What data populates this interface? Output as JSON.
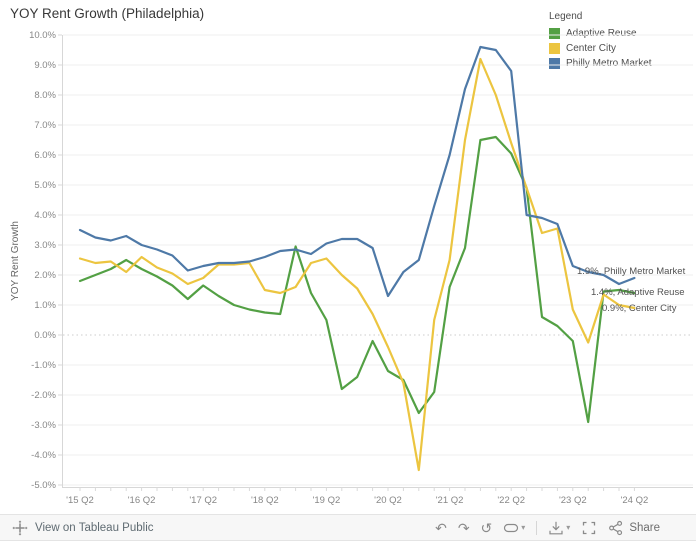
{
  "title": "YOY Rent Growth (Philadelphia)",
  "legend": {
    "title": "Legend",
    "items": [
      {
        "label": "Adaptive Reuse",
        "color": "#53a044"
      },
      {
        "label": "Center City",
        "color": "#ecc540"
      },
      {
        "label": "Philly Metro Market",
        "color": "#4e79a7"
      }
    ]
  },
  "chart_data": {
    "type": "line",
    "title": "YOY Rent Growth (Philadelphia)",
    "xlabel": "",
    "ylabel": "YOY Rent Growth",
    "ylim": [
      -5,
      10
    ],
    "ytick_step": 1,
    "ytick_format": "one-decimal-percent",
    "grid": true,
    "legend_position": "top-right",
    "x_labeled_every": 4,
    "categories": [
      "'15 Q2",
      "'15 Q3",
      "'15 Q4",
      "'16 Q1",
      "'16 Q2",
      "'16 Q3",
      "'16 Q4",
      "'17 Q1",
      "'17 Q2",
      "'17 Q3",
      "'17 Q4",
      "'18 Q1",
      "'18 Q2",
      "'18 Q3",
      "'18 Q4",
      "'19 Q1",
      "'19 Q2",
      "'19 Q3",
      "'19 Q4",
      "'20 Q1",
      "'20 Q2",
      "'20 Q3",
      "'20 Q4",
      "'21 Q1",
      "'21 Q2",
      "'21 Q3",
      "'21 Q4",
      "'22 Q1",
      "'22 Q2",
      "'22 Q3",
      "'22 Q4",
      "'23 Q1",
      "'23 Q2",
      "'23 Q3",
      "'23 Q4",
      "'24 Q1",
      "'24 Q2"
    ],
    "series": [
      {
        "name": "Adaptive Reuse",
        "color": "#53a044",
        "values": [
          1.8,
          2.0,
          2.2,
          2.5,
          2.2,
          1.95,
          1.65,
          1.2,
          1.65,
          1.3,
          1.0,
          0.85,
          0.75,
          0.7,
          2.95,
          1.4,
          0.5,
          -1.8,
          -1.4,
          -0.2,
          -1.2,
          -1.5,
          -2.6,
          -1.9,
          1.6,
          2.9,
          6.5,
          6.6,
          6.05,
          4.9,
          0.6,
          0.3,
          -0.2,
          -2.9,
          1.45,
          1.5,
          1.4
        ]
      },
      {
        "name": "Center City",
        "color": "#ecc540",
        "values": [
          2.55,
          2.4,
          2.45,
          2.1,
          2.6,
          2.25,
          2.05,
          1.7,
          1.9,
          2.35,
          2.35,
          2.4,
          1.5,
          1.4,
          1.6,
          2.4,
          2.55,
          2.0,
          1.55,
          0.7,
          -0.4,
          -1.6,
          -4.5,
          0.5,
          2.5,
          6.5,
          9.2,
          8.0,
          6.4,
          4.9,
          3.4,
          3.55,
          0.85,
          -0.25,
          1.35,
          1.0,
          0.9
        ]
      },
      {
        "name": "Philly Metro Market",
        "color": "#4e79a7",
        "values": [
          3.5,
          3.25,
          3.15,
          3.3,
          3.0,
          2.85,
          2.65,
          2.15,
          2.3,
          2.4,
          2.4,
          2.45,
          2.6,
          2.8,
          2.85,
          2.7,
          3.05,
          3.2,
          3.2,
          2.9,
          1.3,
          2.1,
          2.5,
          4.3,
          6.0,
          8.2,
          9.6,
          9.5,
          8.8,
          4.0,
          3.9,
          3.7,
          2.3,
          2.1,
          2.0,
          1.7,
          1.9
        ]
      }
    ],
    "annotations": [
      {
        "text": "1.9%, Philly Metro Market"
      },
      {
        "text": "1.4%, Adaptive Reuse"
      },
      {
        "text": "0.9%, Center City"
      }
    ]
  },
  "toolbar": {
    "view_label": "View on Tableau Public",
    "share_label": "Share"
  }
}
